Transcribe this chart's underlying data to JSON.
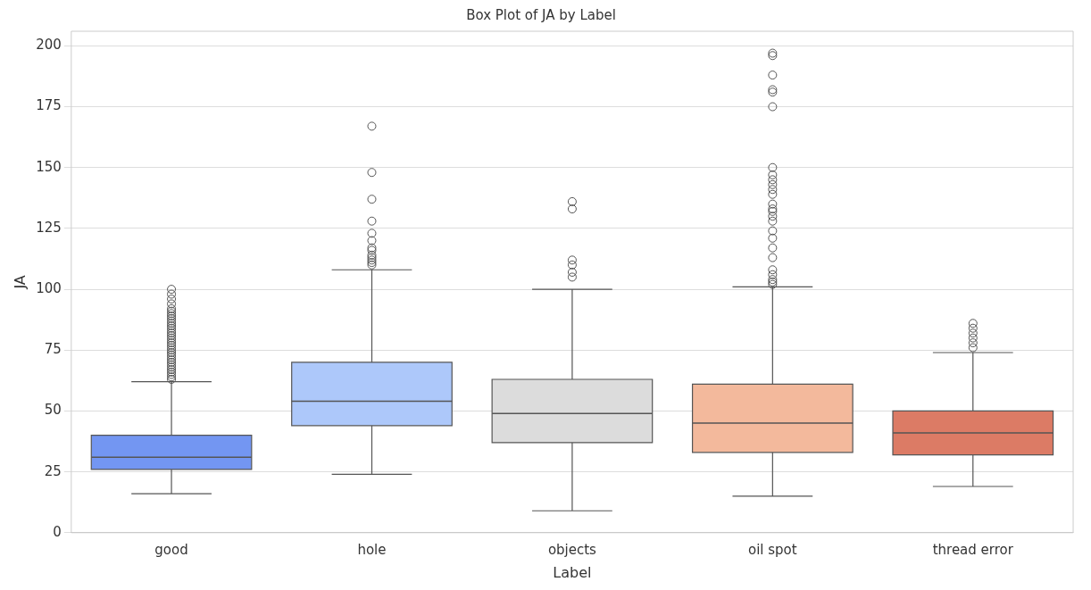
{
  "chart_data": {
    "type": "box",
    "title": "Box Plot of JA by Label",
    "xlabel": "Label",
    "ylabel": "JA",
    "categories": [
      "good",
      "hole",
      "objects",
      "oil spot",
      "thread error"
    ],
    "colors": [
      "#7396f2",
      "#adc8fa",
      "#dcdcdc",
      "#f3b99c",
      "#dc7b65"
    ],
    "boxes": [
      {
        "low": 16,
        "q1": 26,
        "median": 31,
        "q3": 40,
        "high": 62,
        "outliers": [
          63,
          64,
          65,
          66,
          67,
          68,
          69,
          70,
          71,
          72,
          73,
          74,
          75,
          76,
          77,
          78,
          79,
          80,
          81,
          82,
          83,
          84,
          85,
          86,
          87,
          88,
          89,
          90,
          91,
          92,
          94,
          96,
          98,
          100
        ]
      },
      {
        "low": 24,
        "q1": 44,
        "median": 54,
        "q3": 70,
        "high": 108,
        "outliers": [
          110,
          111,
          112,
          113,
          114,
          116,
          117,
          120,
          123,
          128,
          137,
          148,
          167
        ]
      },
      {
        "low": 9,
        "q1": 37,
        "median": 49,
        "q3": 63,
        "high": 100,
        "outliers": [
          105,
          107,
          110,
          112,
          133,
          136
        ]
      },
      {
        "low": 15,
        "q1": 33,
        "median": 45,
        "q3": 61,
        "high": 101,
        "outliers": [
          102,
          103,
          104,
          106,
          108,
          113,
          117,
          121,
          124,
          128,
          130,
          132,
          133,
          135,
          139,
          141,
          143,
          145,
          147,
          150,
          175,
          181,
          182,
          188,
          196,
          197
        ]
      },
      {
        "low": 19,
        "q1": 32,
        "median": 41,
        "q3": 50,
        "high": 74,
        "outliers": [
          76,
          78,
          80,
          82,
          84,
          86
        ]
      }
    ],
    "ylim": [
      0,
      206
    ],
    "yticks": [
      0,
      25,
      50,
      75,
      100,
      125,
      150,
      175,
      200
    ],
    "grid": "y",
    "marker": "circle"
  }
}
